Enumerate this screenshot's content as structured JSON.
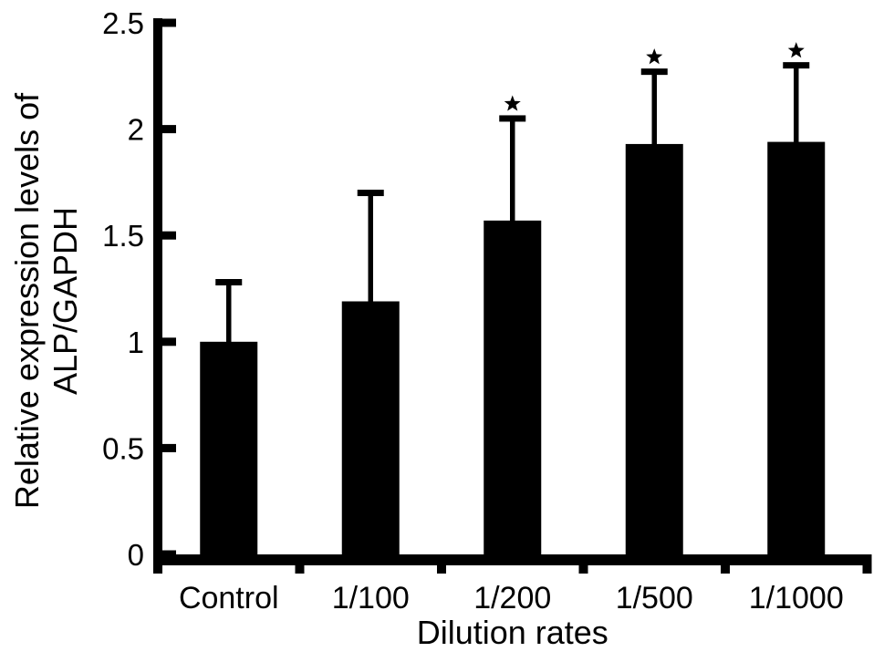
{
  "figure": {
    "background": "#ffffff",
    "ink": "#000000"
  },
  "chart_data": {
    "type": "bar",
    "title": "",
    "xlabel": "Dilution rates",
    "ylabel": "Relative expression levels of ALP/GAPDH",
    "ylabel_lines": [
      "Relative expression levels of",
      "ALP/GAPDH"
    ],
    "categories": [
      "Control",
      "1/100",
      "1/200",
      "1/500",
      "1/1000"
    ],
    "values": [
      1.0,
      1.19,
      1.57,
      1.93,
      1.94
    ],
    "errors_plus": [
      0.28,
      0.51,
      0.48,
      0.34,
      0.36
    ],
    "significance": [
      "",
      "",
      "*",
      "*",
      "*"
    ],
    "ylim": [
      0,
      2.5
    ],
    "yticks": [
      0,
      0.5,
      1,
      1.5,
      2,
      2.5
    ],
    "ytick_labels": [
      "0",
      "0.5",
      "1",
      "1.5",
      "2",
      "2.5"
    ],
    "bar_color": "#000000",
    "grid": false,
    "legend_position": "none"
  }
}
